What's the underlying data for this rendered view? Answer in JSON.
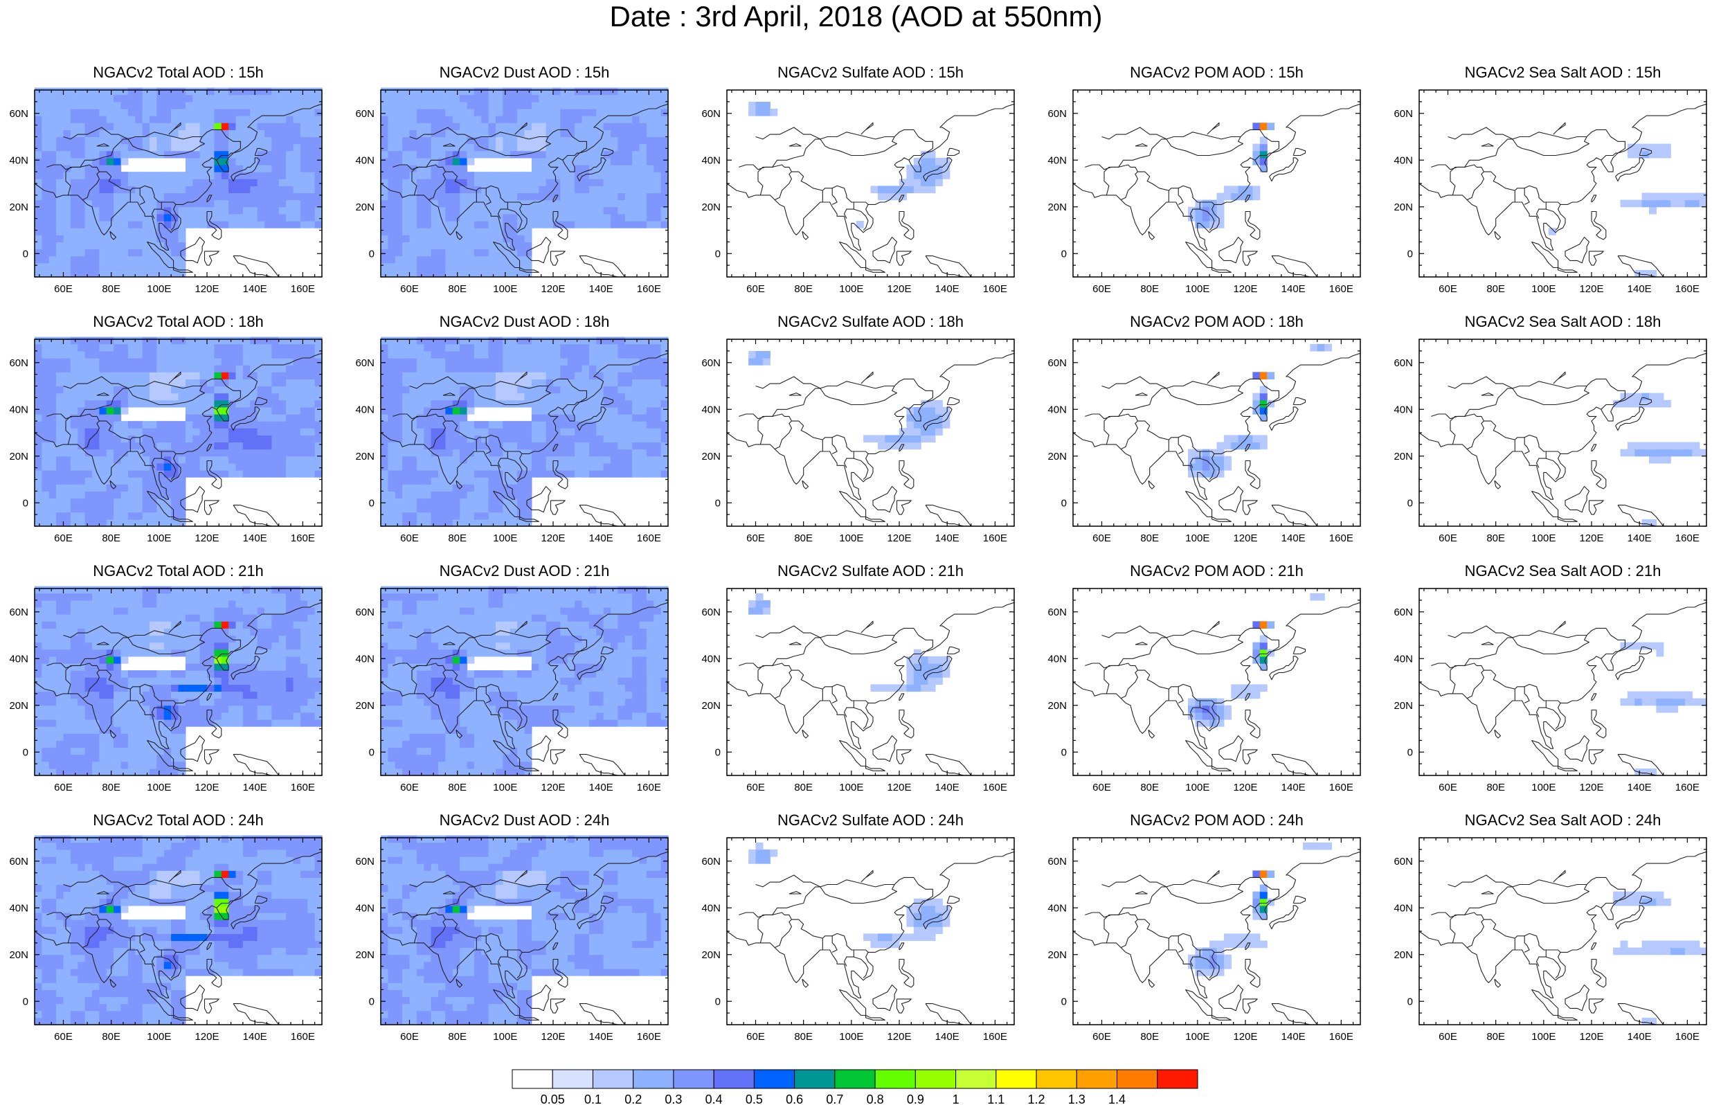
{
  "figure": {
    "title": "Date : 3rd April, 2018 (AOD at 550nm)"
  },
  "axes": {
    "lon_ticks": [
      "60E",
      "80E",
      "100E",
      "120E",
      "140E",
      "160E"
    ],
    "lat_ticks": [
      "60N",
      "40N",
      "20N",
      "0"
    ]
  },
  "rows": [
    {
      "hour": "15h",
      "titles": [
        "NGACv2 Total AOD : 15h",
        "NGACv2 Dust AOD : 15h",
        "NGACv2 Sulfate AOD : 15h",
        "NGACv2 POM AOD : 15h",
        "NGACv2 Sea Salt AOD : 15h"
      ]
    },
    {
      "hour": "18h",
      "titles": [
        "NGACv2 Total AOD : 18h",
        "NGACv2 Dust AOD : 18h",
        "NGACv2 Sulfate AOD : 18h",
        "NGACv2 POM AOD : 18h",
        "NGACv2 Sea Salt AOD : 18h"
      ]
    },
    {
      "hour": "21h",
      "titles": [
        "NGACv2 Total AOD : 21h",
        "NGACv2 Dust AOD : 21h",
        "NGACv2 Sulfate AOD : 21h",
        "NGACv2 POM AOD : 21h",
        "NGACv2 Sea Salt AOD : 21h"
      ]
    },
    {
      "hour": "24h",
      "titles": [
        "NGACv2 Total AOD : 24h",
        "NGACv2 Dust AOD : 24h",
        "NGACv2 Sulfate AOD : 24h",
        "NGACv2 POM AOD : 24h",
        "NGACv2 Sea Salt  AOD : 24h"
      ]
    }
  ],
  "colorbar": {
    "labels": [
      "0.05",
      "0.1",
      "0.2",
      "0.3",
      "0.4",
      "0.5",
      "0.6",
      "0.7",
      "0.8",
      "0.9",
      "1",
      "1.1",
      "1.2",
      "1.3",
      "1.4"
    ],
    "colors": [
      "#ffffff",
      "#d6e2ff",
      "#b5c9ff",
      "#8eb2ff",
      "#7f96ff",
      "#6370f8",
      "#0063ff",
      "#009696",
      "#00c633",
      "#63ff00",
      "#96ff00",
      "#c6ff33",
      "#ffff00",
      "#ffc600",
      "#ffa000",
      "#ff7c00",
      "#ff1900"
    ]
  }
}
